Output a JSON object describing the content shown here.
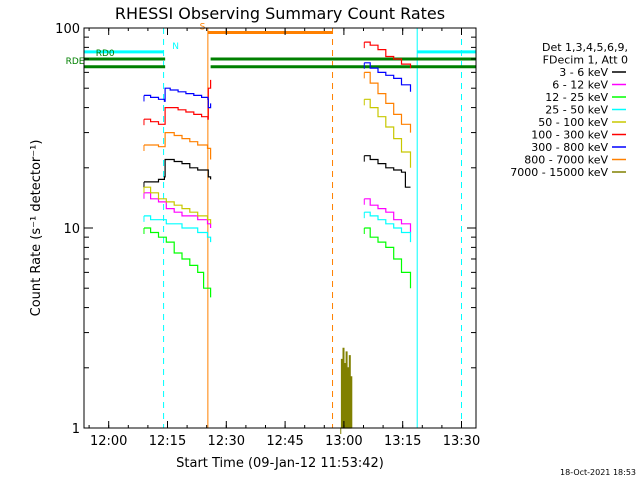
{
  "chart_data": {
    "type": "line",
    "title": "RHESSI Observing Summary Count Rates",
    "xlabel": "Start Time (09-Jan-12 11:53:42)",
    "ylabel": "Count Rate (s⁻¹ detector⁻¹)",
    "footer": "18-Oct-2021 18:53",
    "x_unit": "minutes after 11:53:42",
    "xlim": [
      0,
      100
    ],
    "ylim": [
      1,
      100
    ],
    "yscale": "log",
    "x_ticks": [
      {
        "x": 6.3,
        "label": "12:00"
      },
      {
        "x": 21.3,
        "label": "12:15"
      },
      {
        "x": 36.3,
        "label": "12:30"
      },
      {
        "x": 51.3,
        "label": "12:45"
      },
      {
        "x": 66.3,
        "label": "13:00"
      },
      {
        "x": 81.3,
        "label": "13:15"
      },
      {
        "x": 96.3,
        "label": "13:30"
      }
    ],
    "y_ticks": [
      {
        "y": 1,
        "label": "1"
      },
      {
        "y": 10,
        "label": "10"
      },
      {
        "y": 100,
        "label": "100"
      }
    ],
    "legend": {
      "position": "right",
      "header": [
        "Det 1,3,4,5,6,9,",
        "FDecim 1, Att 0"
      ],
      "entries": [
        {
          "label": "3 - 6 keV",
          "color": "#000000"
        },
        {
          "label": "6 - 12 keV",
          "color": "#ff00ff"
        },
        {
          "label": "12 - 25 keV",
          "color": "#00ff00"
        },
        {
          "label": "25 - 50 keV",
          "color": "#00ffff"
        },
        {
          "label": "50 - 100 keV",
          "color": "#c8c800"
        },
        {
          "label": "100 - 300 keV",
          "color": "#ff0000"
        },
        {
          "label": "300 - 800 keV",
          "color": "#0000ff"
        },
        {
          "label": "800 - 7000 keV",
          "color": "#ff8000"
        },
        {
          "label": "7000 - 15000 keV",
          "color": "#808000"
        }
      ]
    },
    "series": [
      {
        "name": "3 - 6 keV",
        "color": "#000000",
        "segments": [
          {
            "x": [
              15.3,
              17,
              19,
              20.5,
              20.7,
              23,
              25,
              27,
              29,
              31.6,
              31.7,
              32.3
            ],
            "y": [
              17,
              17,
              17.5,
              18,
              22,
              21.5,
              21,
              20,
              19.5,
              19.5,
              18,
              17.5
            ]
          },
          {
            "x": [
              71.5,
              73,
              75,
              77,
              79,
              81,
              82,
              83.3
            ],
            "y": [
              23,
              22,
              21,
              20,
              19.5,
              19,
              16,
              16
            ]
          }
        ]
      },
      {
        "name": "6 - 12 keV",
        "color": "#ff00ff",
        "segments": [
          {
            "x": [
              15.3,
              17,
              19,
              21,
              23,
              25,
              27,
              29,
              31.5,
              32.3
            ],
            "y": [
              15,
              14,
              13.5,
              12.5,
              12,
              11.5,
              11.5,
              11,
              10.5,
              10
            ]
          },
          {
            "x": [
              71.5,
              73,
              75,
              77,
              79,
              81,
              83.3
            ],
            "y": [
              14,
              13,
              12.5,
              12,
              11,
              10.5,
              9.5
            ]
          }
        ]
      },
      {
        "name": "12 - 25 keV",
        "color": "#00ff00",
        "segments": [
          {
            "x": [
              15.3,
              17,
              19,
              21,
              23,
              25,
              27,
              29,
              30.5,
              32.3
            ],
            "y": [
              10,
              9.5,
              9,
              8.5,
              7.5,
              7,
              6.5,
              6,
              5,
              4.5
            ]
          },
          {
            "x": [
              71.5,
              73,
              75,
              77,
              79,
              81,
              83.3
            ],
            "y": [
              10,
              9,
              8.5,
              8,
              7,
              6,
              5
            ]
          }
        ]
      },
      {
        "name": "25 - 50 keV",
        "color": "#00ffff",
        "segments": [
          {
            "x": [
              15.3,
              17,
              19,
              21,
              23,
              25,
              27,
              29,
              31.5,
              32.3
            ],
            "y": [
              11.5,
              11,
              11,
              10.5,
              10.5,
              10,
              10,
              9.5,
              9,
              8.5
            ]
          },
          {
            "x": [
              71.5,
              73,
              75,
              77,
              79,
              81,
              83.3
            ],
            "y": [
              12,
              11.5,
              11,
              10.5,
              10,
              9.5,
              8.5
            ]
          }
        ]
      },
      {
        "name": "50 - 100 keV",
        "color": "#c8c800",
        "segments": [
          {
            "x": [
              15.3,
              17,
              19,
              21,
              23,
              25,
              27,
              29,
              31.5,
              32.3
            ],
            "y": [
              16,
              15,
              14,
              13.5,
              13,
              12.5,
              12,
              11.5,
              11,
              10.5
            ]
          },
          {
            "x": [
              71.5,
              73,
              75,
              77,
              79,
              81,
              83.3
            ],
            "y": [
              44,
              40,
              36,
              32,
              28,
              24,
              20
            ]
          }
        ]
      },
      {
        "name": "100 - 300 keV",
        "color": "#ff0000",
        "segments": [
          {
            "x": [
              15.3,
              17,
              19,
              20.5,
              20.7,
              22,
              24,
              26,
              28,
              30,
              31.6,
              31.7,
              32.3
            ],
            "y": [
              35,
              34,
              33,
              33,
              40,
              40,
              39,
              38,
              37,
              36,
              35,
              50,
              55
            ]
          },
          {
            "x": [
              71.5,
              73,
              75,
              77,
              79,
              81,
              83.3
            ],
            "y": [
              85,
              82,
              78,
              72,
              70,
              66,
              63
            ]
          }
        ]
      },
      {
        "name": "300 - 800 keV",
        "color": "#0000ff",
        "segments": [
          {
            "x": [
              15.3,
              17,
              19,
              20.5,
              20.7,
              22,
              24,
              26,
              28,
              30,
              31.6,
              31.7,
              32.3
            ],
            "y": [
              46,
              45,
              44,
              43,
              50,
              49,
              48,
              47,
              46,
              45,
              44,
              40,
              42
            ]
          },
          {
            "x": [
              71.5,
              73,
              75,
              77,
              79,
              81,
              83.3
            ],
            "y": [
              67,
              63,
              60,
              58,
              56,
              52,
              48
            ]
          }
        ]
      },
      {
        "name": "800 - 7000 keV",
        "color": "#ff8000",
        "segments": [
          {
            "x": [
              15.3,
              17,
              19,
              20.5,
              20.7,
              23,
              25,
              27,
              29,
              31.5,
              32.3
            ],
            "y": [
              26,
              26,
              25.5,
              25.5,
              30,
              29,
              28,
              27,
              26,
              25,
              22
            ]
          },
          {
            "x": [
              71.5,
              73,
              75,
              77,
              79,
              81,
              83.3
            ],
            "y": [
              60,
              53,
              47,
              42,
              37,
              33,
              30
            ]
          }
        ]
      },
      {
        "name": "7000 - 15000 keV",
        "color": "#808000",
        "segments": [
          {
            "x": [
              65.5,
              65.7,
              65.9,
              66.1,
              66.3,
              66.5,
              66.7,
              66.9,
              67.1,
              67.3,
              67.5,
              67.7,
              67.9,
              68.1,
              68.3
            ],
            "y": [
              1,
              2.2,
              1,
              2.5,
              1,
              2.1,
              1,
              2.4,
              1,
              2,
              1,
              2.3,
              1,
              1.8,
              1
            ]
          }
        ]
      }
    ],
    "flags": [
      {
        "name": "N",
        "color": "#00ffff",
        "style": "bar",
        "y": 76,
        "segments": [
          [
            0,
            20.3
          ],
          [
            85,
            100
          ]
        ],
        "label_x": 22.5
      },
      {
        "name": "S",
        "color": "#ff8000",
        "style": "bar",
        "y": 95,
        "segments": [
          [
            31.6,
            63.4
          ]
        ],
        "label_x": 29.5
      },
      {
        "name": "RD0",
        "color": "#008000",
        "style": "bar",
        "y": 70,
        "segments": [
          [
            0,
            20.7
          ],
          [
            32.3,
            100
          ]
        ],
        "label_x": 3
      },
      {
        "name": "RDE",
        "color": "#008000",
        "style": "bar",
        "y": 64,
        "segments": [
          [
            0,
            20.7
          ],
          [
            32.3,
            100
          ]
        ],
        "label_x": -4.7
      }
    ],
    "vertical_markers": [
      {
        "x": 20.3,
        "color": "#00ffff",
        "dashed": true
      },
      {
        "x": 96.3,
        "color": "#00ffff",
        "dashed": true
      },
      {
        "x": 31.6,
        "color": "#ff8000",
        "dashed": false
      },
      {
        "x": 63.4,
        "color": "#ff8000",
        "dashed": true
      },
      {
        "x": 85,
        "color": "#00ffff",
        "dashed": false
      }
    ],
    "grid": false
  }
}
